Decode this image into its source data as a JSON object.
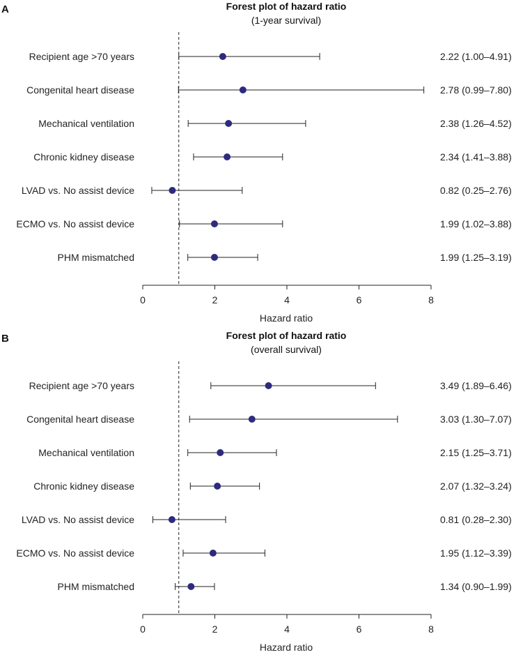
{
  "chart_data": [
    {
      "type": "forest",
      "panel_label": "A",
      "title": "Forest plot of hazard ratio",
      "subtitle": "(1-year survival)",
      "xlabel": "Hazard ratio",
      "xlim": [
        0,
        8
      ],
      "xticks": [
        "0",
        "2",
        "4",
        "6",
        "8"
      ],
      "reference_line": 1,
      "rows": [
        {
          "label": "Recipient age >70 years",
          "hr": 2.22,
          "lo": 1.0,
          "hi": 4.91,
          "text": "2.22 (1.00–4.91)"
        },
        {
          "label": "Congenital heart disease",
          "hr": 2.78,
          "lo": 0.99,
          "hi": 7.8,
          "text": "2.78 (0.99–7.80)"
        },
        {
          "label": "Mechanical ventilation",
          "hr": 2.38,
          "lo": 1.26,
          "hi": 4.52,
          "text": "2.38 (1.26–4.52)"
        },
        {
          "label": "Chronic kidney disease",
          "hr": 2.34,
          "lo": 1.41,
          "hi": 3.88,
          "text": "2.34 (1.41–3.88)"
        },
        {
          "label": "LVAD vs. No assist device",
          "hr": 0.82,
          "lo": 0.25,
          "hi": 2.76,
          "text": "0.82 (0.25–2.76)"
        },
        {
          "label": "ECMO vs. No assist device",
          "hr": 1.99,
          "lo": 1.02,
          "hi": 3.88,
          "text": "1.99 (1.02–3.88)"
        },
        {
          "label": "PHM mismatched",
          "hr": 1.99,
          "lo": 1.25,
          "hi": 3.19,
          "text": "1.99 (1.25–3.19)"
        }
      ]
    },
    {
      "type": "forest",
      "panel_label": "B",
      "title": "Forest plot of hazard ratio",
      "subtitle": "(overall survival)",
      "xlabel": "Hazard ratio",
      "xlim": [
        0,
        8
      ],
      "xticks": [
        "0",
        "2",
        "4",
        "6",
        "8"
      ],
      "reference_line": 1,
      "rows": [
        {
          "label": "Recipient age >70 years",
          "hr": 3.49,
          "lo": 1.89,
          "hi": 6.46,
          "text": "3.49 (1.89–6.46)"
        },
        {
          "label": "Congenital heart disease",
          "hr": 3.03,
          "lo": 1.3,
          "hi": 7.07,
          "text": "3.03 (1.30–7.07)"
        },
        {
          "label": "Mechanical ventilation",
          "hr": 2.15,
          "lo": 1.25,
          "hi": 3.71,
          "text": "2.15 (1.25–3.71)"
        },
        {
          "label": "Chronic kidney disease",
          "hr": 2.07,
          "lo": 1.32,
          "hi": 3.24,
          "text": "2.07 (1.32–3.24)"
        },
        {
          "label": "LVAD vs. No assist device",
          "hr": 0.81,
          "lo": 0.28,
          "hi": 2.3,
          "text": "0.81 (0.28–2.30)"
        },
        {
          "label": "ECMO vs. No assist device",
          "hr": 1.95,
          "lo": 1.12,
          "hi": 3.39,
          "text": "1.95 (1.12–3.39)"
        },
        {
          "label": "PHM mismatched",
          "hr": 1.34,
          "lo": 0.9,
          "hi": 1.99,
          "text": "1.34 (0.90–1.99)"
        }
      ]
    }
  ]
}
